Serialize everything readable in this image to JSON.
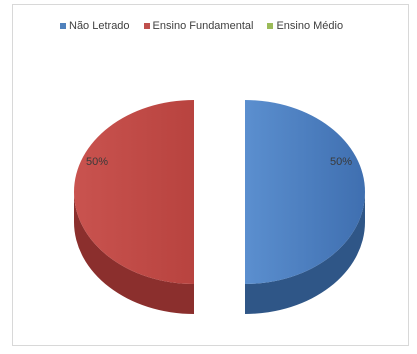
{
  "chart_data": {
    "type": "pie",
    "style": "3d-exploded",
    "legend_position": "top",
    "series": [
      {
        "name": "Não Letrado",
        "value": 50,
        "label": "50%",
        "color": "#4f81bd",
        "side_color": "#2f5687"
      },
      {
        "name": "Ensino Fundamental",
        "value": 50,
        "label": "50%",
        "color": "#c0504d",
        "side_color": "#8b2f2d"
      },
      {
        "name": "Ensino Médio",
        "value": 0,
        "label": "",
        "color": "#9bbb59",
        "side_color": "#6f8a3a"
      }
    ]
  }
}
